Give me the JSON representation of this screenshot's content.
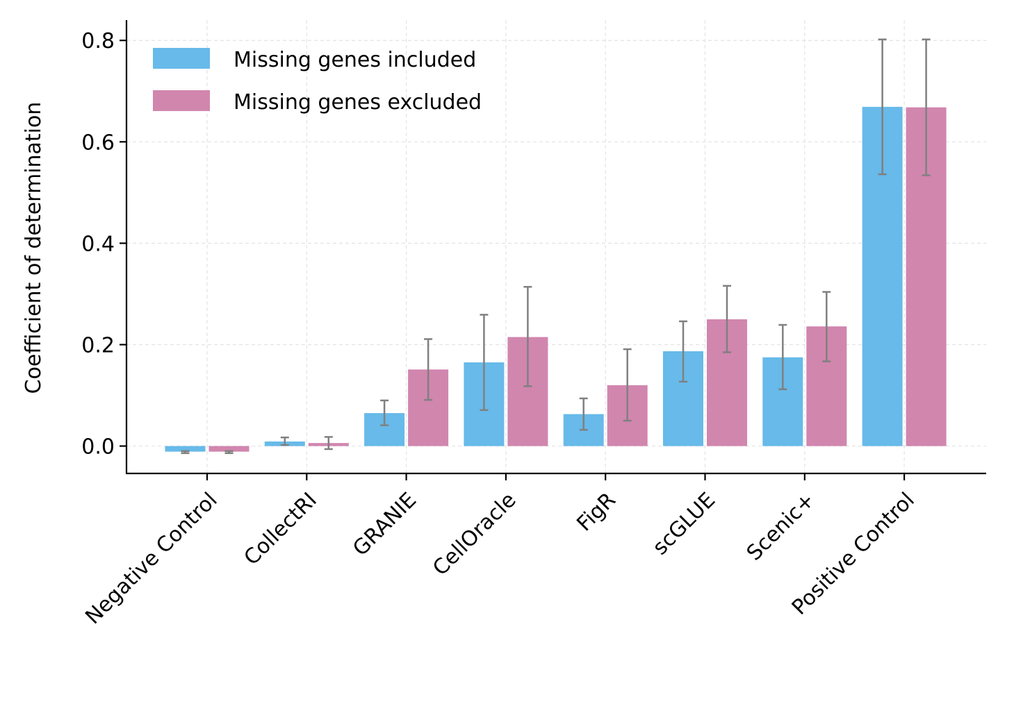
{
  "chart_data": {
    "type": "bar",
    "title": "",
    "xlabel": "",
    "ylabel": "Coefficient of determination",
    "categories": [
      "Negative Control",
      "CollectRI",
      "GRANIE",
      "CellOracle",
      "FigR",
      "scGLUE",
      "Scenic+",
      "Positive Control"
    ],
    "series": [
      {
        "name": "Missing genes included",
        "color": "#67bae9",
        "values": [
          -0.011,
          0.009,
          0.065,
          0.165,
          0.063,
          0.187,
          0.175,
          0.669
        ],
        "err_low": [
          -0.014,
          0.002,
          0.041,
          0.071,
          0.032,
          0.127,
          0.112,
          0.536
        ],
        "err_high": [
          -0.01,
          0.017,
          0.09,
          0.259,
          0.094,
          0.246,
          0.239,
          0.802
        ]
      },
      {
        "name": "Missing genes excluded",
        "color": "#d186ae",
        "values": [
          -0.011,
          0.006,
          0.151,
          0.215,
          0.12,
          0.25,
          0.236,
          0.668
        ],
        "err_low": [
          -0.014,
          -0.006,
          0.091,
          0.118,
          0.05,
          0.185,
          0.167,
          0.534
        ],
        "err_high": [
          -0.01,
          0.018,
          0.211,
          0.314,
          0.191,
          0.316,
          0.304,
          0.802
        ]
      }
    ],
    "ylim": [
      -0.054,
      0.84
    ],
    "yticks": [
      0.0,
      0.2,
      0.4,
      0.6,
      0.8
    ],
    "ytick_labels": [
      "0.0",
      "0.2",
      "0.4",
      "0.6",
      "0.8"
    ],
    "grid": true,
    "legend_position": "top-left",
    "error_bar_color": "#808080"
  }
}
